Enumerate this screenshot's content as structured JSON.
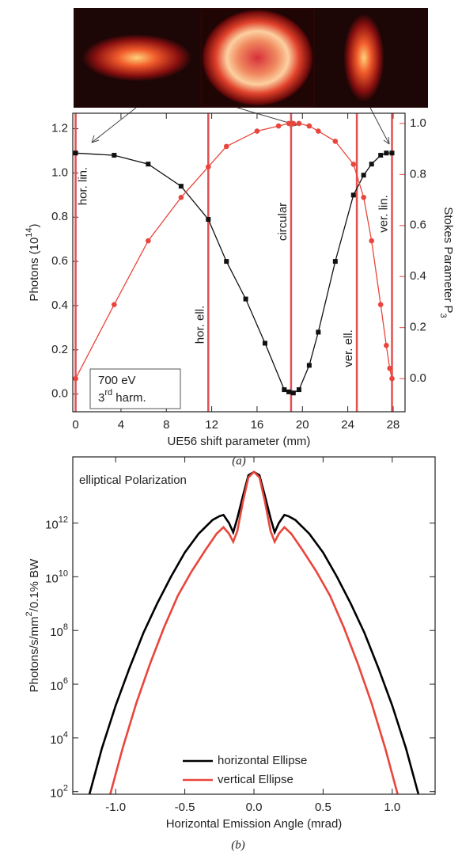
{
  "chart_data": [
    {
      "type": "line",
      "x_label": "UE56 shift parameter (mm)",
      "y_label": {
        "text": "Photons (10",
        "sup": "14",
        "after": ")"
      },
      "y2_label": {
        "text": "Stokes Parameter P",
        "sub": "3"
      },
      "caption": "(a)",
      "annotation": [
        "700 eV",
        {
          "text": "3",
          "sup": "rd",
          "after": " harm."
        }
      ],
      "xlim": [
        -0.25,
        29.05
      ],
      "xticks": [
        0,
        4,
        8,
        12,
        16,
        20,
        24,
        28
      ],
      "ylim": [
        -0.08,
        1.27
      ],
      "yticks": [
        {
          "value": 0,
          "label": "0.0"
        },
        {
          "value": 0.2,
          "label": "0.2"
        },
        {
          "value": 0.4,
          "label": "0.4"
        },
        {
          "value": 0.6,
          "label": "0.6"
        },
        {
          "value": 0.8,
          "label": "0.8"
        },
        {
          "value": 1,
          "label": "1.0"
        },
        {
          "value": 1.2,
          "label": "1.2"
        }
      ],
      "y2lim": [
        -0.13,
        1.04
      ],
      "y2ticks": [
        {
          "value": 0,
          "label": "0.0"
        },
        {
          "value": 0.2,
          "label": "0.2"
        },
        {
          "value": 0.4,
          "label": "0.4"
        },
        {
          "value": 0.6,
          "label": "0.6"
        },
        {
          "value": 0.8,
          "label": "0.8"
        },
        {
          "value": 1,
          "label": "1.0"
        }
      ],
      "y2_color": "#e8463c",
      "markers": [
        {
          "x": 0,
          "label": "hor. lin."
        },
        {
          "x": 11.7,
          "label": "hor. ell."
        },
        {
          "x": 19.0,
          "label": "circular"
        },
        {
          "x": 24.8,
          "label": "ver. ell."
        },
        {
          "x": 27.9,
          "label": "ver. lin."
        }
      ],
      "marker_color": "#e05050",
      "series": [
        {
          "color": "#111111",
          "marker": "square",
          "x": [
            0,
            3.4,
            6.4,
            9.3,
            11.7,
            13.3,
            15,
            16.7,
            18.4,
            18.8,
            19.2,
            19.7,
            20.6,
            21.4,
            22.9,
            24.5,
            25.4,
            26.1,
            26.9,
            27.4,
            27.9
          ],
          "values": [
            1.09,
            1.08,
            1.04,
            0.94,
            0.79,
            0.6,
            0.43,
            0.23,
            0.02,
            0.01,
            0.005,
            0.02,
            0.13,
            0.28,
            0.6,
            0.9,
            0.99,
            1.04,
            1.08,
            1.09,
            1.09
          ]
        },
        {
          "color": "#e8463c",
          "marker": "circle",
          "axis": "y2",
          "x": [
            0,
            3.4,
            6.4,
            9.3,
            11.7,
            13.3,
            16,
            17.9,
            18.8,
            19.2,
            19.7,
            20.6,
            21.4,
            22.9,
            24.5,
            25.4,
            26.1,
            26.9,
            27.4,
            27.7,
            27.9
          ],
          "values": [
            0,
            0.29,
            0.54,
            0.71,
            0.83,
            0.91,
            0.97,
            0.99,
            1.0,
            1.0,
            1.0,
            0.99,
            0.97,
            0.93,
            0.84,
            0.71,
            0.54,
            0.29,
            0.13,
            0.04,
            0.0
          ]
        }
      ]
    },
    {
      "type": "line",
      "log_y": true,
      "x_label": "Horizontal Emission Angle (mrad)",
      "y_label": {
        "text": "Photons/s/mm",
        "sup": "2",
        "after": "/0.1% BW"
      },
      "caption": "(b)",
      "annotation": [
        "elliptical Polarization"
      ],
      "legend": "lower center",
      "xlim": [
        -1.31,
        1.31
      ],
      "xticks": [
        {
          "value": -1,
          "label": "-1.0"
        },
        {
          "value": -0.5,
          "label": "-0.5"
        },
        {
          "value": 0,
          "label": "0.0"
        },
        {
          "value": 0.5,
          "label": "0.5"
        },
        {
          "value": 1,
          "label": "1.0"
        }
      ],
      "ylim": [
        80,
        290000000000000.0
      ],
      "yticks": [
        {
          "value": 100,
          "label": "10",
          "exponent": "2"
        },
        {
          "value": 10000,
          "label": "10",
          "exponent": "4"
        },
        {
          "value": 1000000,
          "label": "10",
          "exponent": "6"
        },
        {
          "value": 100000000,
          "label": "10",
          "exponent": "8"
        },
        {
          "value": 10000000000,
          "label": "10",
          "exponent": "10"
        },
        {
          "value": 1000000000000,
          "label": "10",
          "exponent": "12"
        }
      ],
      "series": [
        {
          "name": "horizontal Ellipse",
          "color": "#000000",
          "x": [
            -1.2,
            -1.1,
            -1,
            -0.9,
            -0.8,
            -0.7,
            -0.6,
            -0.5,
            -0.4,
            -0.3,
            -0.25,
            -0.22,
            -0.18,
            -0.15,
            -0.12,
            -0.08,
            -0.04,
            0,
            0.04,
            0.08,
            0.12,
            0.15,
            0.18,
            0.22,
            0.25,
            0.3,
            0.4,
            0.5,
            0.6,
            0.7,
            0.8,
            0.9,
            1,
            1.1,
            1.2
          ],
          "values": [
            50,
            4000,
            160000,
            4000000,
            80000000,
            1000000000,
            10000000000,
            80000000000,
            400000000000,
            1300000000000,
            1800000000000,
            2000000000000,
            1000000000000,
            450000000000,
            1500000000000,
            10000000000000,
            60000000000000,
            80000000000000,
            60000000000000,
            10000000000000,
            1500000000000,
            450000000000,
            1000000000000,
            2000000000000,
            1800000000000,
            1300000000000,
            400000000000,
            80000000000,
            10000000000,
            1000000000,
            80000000,
            4000000,
            160000,
            4000,
            50
          ]
        },
        {
          "name": "vertical Ellipse",
          "color": "#e8463c",
          "x": [
            -1.05,
            -0.95,
            -0.85,
            -0.75,
            -0.65,
            -0.55,
            -0.45,
            -0.35,
            -0.27,
            -0.22,
            -0.18,
            -0.15,
            -0.12,
            -0.08,
            -0.04,
            0,
            0.04,
            0.08,
            0.12,
            0.15,
            0.18,
            0.22,
            0.27,
            0.35,
            0.45,
            0.55,
            0.65,
            0.75,
            0.85,
            0.95,
            1.05
          ],
          "values": [
            50,
            4000,
            200000,
            6000000,
            130000000,
            2000000000,
            16000000000,
            100000000000,
            400000000000,
            700000000000,
            400000000000,
            200000000000,
            500000000000,
            6000000000000,
            50000000000000,
            80000000000000,
            50000000000000,
            6000000000000,
            500000000000,
            200000000000,
            400000000000,
            700000000000,
            400000000000,
            100000000000,
            16000000000,
            2000000000,
            130000000,
            6000000,
            200000,
            4000,
            50
          ]
        }
      ]
    }
  ]
}
